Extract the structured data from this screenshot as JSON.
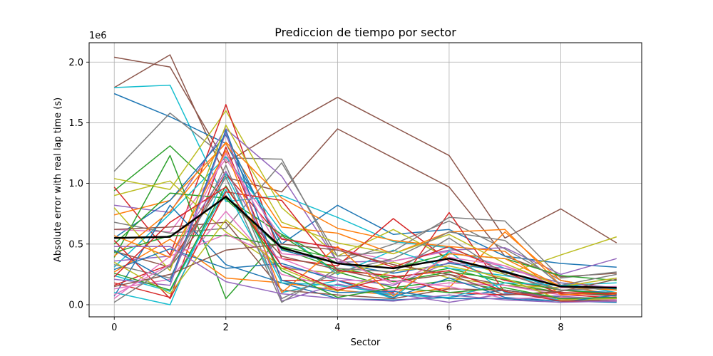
{
  "chart_data": {
    "type": "line",
    "title": "Prediccion de tiempo por sector",
    "xlabel": "Sector",
    "ylabel": "Absolute error with real lap time (s)",
    "offset_text": "1e6",
    "x": [
      0,
      1,
      2,
      3,
      4,
      5,
      6,
      7,
      8,
      9
    ],
    "xlim": [
      -0.45,
      9.45
    ],
    "ylim": [
      -0.1,
      2.16
    ],
    "xticks": [
      0,
      2,
      4,
      6,
      8
    ],
    "yticks": [
      0.0,
      0.5,
      1.0,
      1.5,
      2.0
    ],
    "ytick_labels": [
      "0.0",
      "0.5",
      "1.0",
      "1.5",
      "2.0"
    ],
    "grid": true,
    "series": [
      {
        "color": "#8c564b",
        "values": [
          2.04,
          1.96,
          1.17,
          1.45,
          1.71,
          1.47,
          1.23,
          0.55,
          0.79,
          0.51
        ]
      },
      {
        "color": "#8c564b",
        "values": [
          1.79,
          2.06,
          1.05,
          0.93,
          1.45,
          1.21,
          0.97,
          0.4,
          0.23,
          0.26
        ]
      },
      {
        "color": "#17becf",
        "values": [
          1.79,
          1.81,
          0.85,
          0.9,
          0.72,
          0.52,
          0.47,
          0.3,
          0.18,
          0.1
        ]
      },
      {
        "color": "#1f77b4",
        "values": [
          1.74,
          1.55,
          1.33,
          0.5,
          0.82,
          0.58,
          0.62,
          0.4,
          0.34,
          0.31
        ]
      },
      {
        "color": "#7f7f7f",
        "values": [
          1.1,
          1.58,
          1.21,
          1.2,
          0.35,
          0.5,
          0.69,
          0.46,
          0.2,
          0.12
        ]
      },
      {
        "color": "#2ca02c",
        "values": [
          0.94,
          1.31,
          0.87,
          0.46,
          0.3,
          0.22,
          0.3,
          0.18,
          0.1,
          0.08
        ]
      },
      {
        "color": "#bcbd22",
        "values": [
          1.04,
          0.95,
          1.6,
          0.8,
          0.4,
          0.62,
          0.38,
          0.25,
          0.41,
          0.56
        ]
      },
      {
        "color": "#d62728",
        "values": [
          0.97,
          0.41,
          1.65,
          0.38,
          0.32,
          0.71,
          0.36,
          0.2,
          0.12,
          0.08
        ]
      },
      {
        "color": "#9467bd",
        "values": [
          0.82,
          0.76,
          1.45,
          1.06,
          0.35,
          0.36,
          0.45,
          0.47,
          0.25,
          0.38
        ]
      },
      {
        "color": "#ff7f0e",
        "values": [
          0.74,
          0.86,
          1.33,
          0.64,
          0.59,
          0.42,
          0.6,
          0.62,
          0.16,
          0.08
        ]
      },
      {
        "color": "#1f77b4",
        "values": [
          0.55,
          0.86,
          1.4,
          0.45,
          0.34,
          0.26,
          0.34,
          0.28,
          0.12,
          0.1
        ]
      },
      {
        "color": "#e377c2",
        "values": [
          0.62,
          0.6,
          1.2,
          0.55,
          0.46,
          0.36,
          0.44,
          0.32,
          0.16,
          0.12
        ]
      },
      {
        "color": "#17becf",
        "values": [
          0.31,
          0.75,
          1.22,
          0.6,
          0.25,
          0.45,
          0.3,
          0.24,
          0.16,
          0.18
        ]
      },
      {
        "color": "#2ca02c",
        "values": [
          0.39,
          1.23,
          0.05,
          0.57,
          0.27,
          0.14,
          0.2,
          0.12,
          0.06,
          0.05
        ]
      },
      {
        "color": "#bcbd22",
        "values": [
          0.9,
          1.02,
          0.6,
          0.3,
          0.26,
          0.35,
          0.22,
          0.16,
          0.14,
          0.13
        ]
      },
      {
        "color": "#d62728",
        "values": [
          0.18,
          0.06,
          1.3,
          0.2,
          0.2,
          0.1,
          0.76,
          0.1,
          0.05,
          0.03
        ]
      },
      {
        "color": "#8c564b",
        "values": [
          0.44,
          0.31,
          0.9,
          0.4,
          0.29,
          0.19,
          0.25,
          0.16,
          0.1,
          0.07
        ]
      },
      {
        "color": "#ff7f0e",
        "values": [
          0.27,
          0.54,
          0.22,
          0.18,
          0.12,
          0.08,
          0.14,
          0.6,
          0.2,
          0.12
        ]
      },
      {
        "color": "#7f7f7f",
        "values": [
          0.68,
          0.59,
          0.63,
          1.17,
          0.4,
          0.44,
          0.72,
          0.69,
          0.22,
          0.27
        ]
      },
      {
        "color": "#1f77b4",
        "values": [
          0.07,
          0.82,
          0.33,
          0.18,
          0.05,
          0.04,
          0.06,
          0.12,
          0.06,
          0.04
        ]
      },
      {
        "color": "#9467bd",
        "values": [
          0.36,
          0.4,
          1.1,
          0.32,
          0.22,
          0.16,
          0.35,
          0.3,
          0.18,
          0.14
        ]
      },
      {
        "color": "#2ca02c",
        "values": [
          0.5,
          0.92,
          0.88,
          0.58,
          0.34,
          0.3,
          0.42,
          0.38,
          0.24,
          0.2
        ]
      },
      {
        "color": "#e377c2",
        "values": [
          0.13,
          0.21,
          0.77,
          0.25,
          0.14,
          0.12,
          0.18,
          0.16,
          0.08,
          0.06
        ]
      },
      {
        "color": "#d62728",
        "values": [
          0.16,
          0.33,
          1.08,
          0.54,
          0.47,
          0.31,
          0.48,
          0.27,
          0.09,
          0.05
        ]
      },
      {
        "color": "#17becf",
        "values": [
          0.24,
          0.11,
          0.95,
          0.1,
          0.2,
          0.05,
          0.44,
          0.1,
          0.04,
          0.03
        ]
      },
      {
        "color": "#bcbd22",
        "values": [
          0.8,
          0.28,
          1.48,
          0.68,
          0.51,
          0.42,
          0.58,
          0.34,
          0.15,
          0.22
        ]
      },
      {
        "color": "#8c564b",
        "values": [
          0.62,
          0.64,
          0.68,
          0.12,
          0.08,
          0.05,
          0.13,
          0.12,
          0.05,
          0.06
        ]
      },
      {
        "color": "#ff7f0e",
        "values": [
          0.4,
          0.77,
          1.34,
          0.88,
          0.63,
          0.53,
          0.48,
          0.44,
          0.08,
          0.1
        ]
      },
      {
        "color": "#1f77b4",
        "values": [
          0.29,
          0.46,
          0.3,
          0.34,
          0.2,
          0.06,
          0.22,
          0.06,
          0.03,
          0.02
        ]
      },
      {
        "color": "#7f7f7f",
        "values": [
          0.33,
          0.22,
          1.15,
          0.05,
          0.27,
          0.38,
          0.6,
          0.53,
          0.16,
          0.25
        ]
      },
      {
        "color": "#2ca02c",
        "values": [
          0.43,
          0.57,
          0.57,
          0.48,
          0.38,
          0.19,
          0.27,
          0.21,
          0.12,
          0.09
        ]
      },
      {
        "color": "#9467bd",
        "values": [
          0.21,
          0.16,
          1.42,
          0.03,
          0.17,
          0.09,
          0.02,
          0.09,
          0.07,
          0.04
        ]
      },
      {
        "color": "#d62728",
        "values": [
          0.53,
          0.05,
          0.93,
          0.86,
          0.28,
          0.24,
          0.1,
          0.08,
          0.1,
          0.09
        ]
      },
      {
        "color": "#e377c2",
        "values": [
          0.05,
          0.4,
          0.58,
          0.38,
          0.2,
          0.2,
          0.15,
          0.05,
          0.06,
          0.04
        ]
      },
      {
        "color": "#17becf",
        "values": [
          0.1,
          0.0,
          1.08,
          0.18,
          0.16,
          0.08,
          0.06,
          0.18,
          0.16,
          0.13
        ]
      },
      {
        "color": "#bcbd22",
        "values": [
          0.35,
          0.09,
          0.7,
          0.3,
          0.11,
          0.28,
          0.32,
          0.22,
          0.04,
          0.05
        ]
      },
      {
        "color": "#ff7f0e",
        "values": [
          0.57,
          0.39,
          1.27,
          0.1,
          0.48,
          0.07,
          0.42,
          0.38,
          0.15,
          0.12
        ]
      },
      {
        "color": "#8c564b",
        "values": [
          0.15,
          0.25,
          0.45,
          0.5,
          0.45,
          0.33,
          0.25,
          0.08,
          0.11,
          0.21
        ]
      },
      {
        "color": "#1f77b4",
        "values": [
          0.45,
          0.19,
          1.44,
          0.2,
          0.1,
          0.11,
          0.05,
          0.05,
          0.02,
          0.08
        ]
      },
      {
        "color": "#2ca02c",
        "values": [
          0.26,
          0.12,
          0.98,
          0.28,
          0.06,
          0.14,
          0.1,
          0.14,
          0.05,
          0.06
        ]
      },
      {
        "color": "#7f7f7f",
        "values": [
          0.02,
          0.32,
          1.05,
          0.02,
          0.3,
          0.27,
          0.55,
          0.25,
          0.12,
          0.14
        ]
      },
      {
        "color": "#d62728",
        "values": [
          0.23,
          0.68,
          0.97,
          0.32,
          0.12,
          0.23,
          0.28,
          0.11,
          0.03,
          0.03
        ]
      },
      {
        "color": "#9467bd",
        "values": [
          0.48,
          0.48,
          0.19,
          0.09,
          0.05,
          0.03,
          0.08,
          0.04,
          0.02,
          0.03
        ]
      },
      {
        "color": "#e377c2",
        "values": [
          0.08,
          0.33,
          1.25,
          0.42,
          0.38,
          0.17,
          0.39,
          0.32,
          0.14,
          0.15
        ]
      }
    ],
    "mean_series": {
      "color": "#000000",
      "values": [
        0.55,
        0.56,
        0.89,
        0.47,
        0.34,
        0.3,
        0.38,
        0.27,
        0.15,
        0.14
      ]
    }
  }
}
